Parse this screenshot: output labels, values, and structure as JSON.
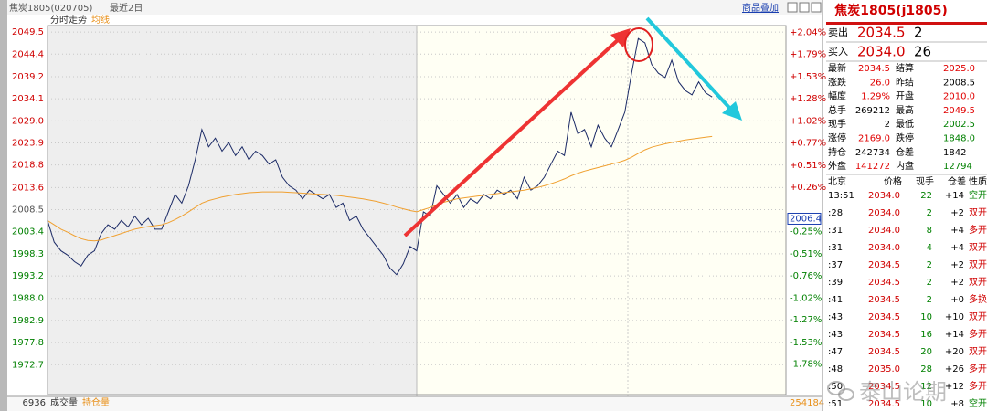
{
  "header": {
    "symbol": "焦炭1805(020705)",
    "range": "最近2日",
    "overlay_link": "商品叠加",
    "panel_tab": "分时走势",
    "avg_tab": "均线"
  },
  "chart_data": {
    "type": "line",
    "ylim": [
      1965.8,
      2051.0
    ],
    "yticks": [
      2049.5,
      2044.4,
      2039.2,
      2034.1,
      {
        "value": 2029,
        "label": "2029.0"
      },
      2023.9,
      2018.8,
      2013.6,
      2008.5,
      2003.4,
      1998.3,
      1993.2,
      {
        "value": 1988,
        "label": "1988.0"
      },
      1982.9,
      1977.8,
      1972.7
    ],
    "y2lim": [
      -2.13,
      2.12
    ],
    "y2ticks": [
      {
        "value": 2.04,
        "label": "+2.04%"
      },
      {
        "value": 1.79,
        "label": "+1.79%"
      },
      {
        "value": 1.53,
        "label": "+1.53%"
      },
      {
        "value": 1.28,
        "label": "+1.28%"
      },
      {
        "value": 1.02,
        "label": "+1.02%"
      },
      {
        "value": 0.77,
        "label": "+0.77%"
      },
      {
        "value": 0.51,
        "label": "+0.51%"
      },
      {
        "value": 0.26,
        "label": "+0.26%"
      },
      {
        "value": -0.25,
        "label": "-0.25%"
      },
      {
        "value": -0.51,
        "label": "-0.51%"
      },
      {
        "value": -0.76,
        "label": "-0.76%"
      },
      {
        "value": -1.02,
        "label": "-1.02%"
      },
      {
        "value": -1.27,
        "label": "-1.27%"
      },
      {
        "value": -1.53,
        "label": "-1.53%"
      },
      {
        "value": -1.78,
        "label": "-1.78%"
      }
    ],
    "grid": true,
    "right_marker": 2006.4,
    "series": [
      {
        "color": "#1b2a66",
        "values": [
          2006,
          2001,
          1999,
          1998,
          1996.5,
          1995.5,
          1998,
          1999,
          2003,
          2005,
          2004,
          2006,
          2004.5,
          2007,
          2005,
          2006.5,
          2004,
          2004,
          2008,
          2012,
          2010,
          2014,
          2020,
          2027,
          2023,
          2025,
          2022,
          2024,
          2021,
          2023,
          2020,
          2022,
          2021,
          2019,
          2020,
          2016,
          2014,
          2013,
          2011,
          2013,
          2012,
          2011,
          2012,
          2009,
          2010,
          2006,
          2007,
          2004,
          2002,
          2000,
          1998,
          1995,
          1993.5,
          1996,
          2000,
          1999,
          2008,
          2007,
          2014,
          2012,
          2010,
          2012,
          2009,
          2011,
          2010,
          2012,
          2011,
          2013,
          2012,
          2013,
          2011,
          2016,
          2013,
          2014,
          2016,
          2019,
          2022,
          2021,
          2031,
          2026,
          2027,
          2023,
          2028,
          2025,
          2023,
          2027,
          2031,
          2040,
          2048,
          2047,
          2042,
          2040,
          2039,
          2043,
          2038,
          2036,
          2035,
          2038,
          2035.5,
          2034.5,
          null,
          null,
          null,
          null,
          null,
          null,
          null,
          null,
          null,
          null
        ]
      },
      {
        "name": "均线",
        "color": "#f0a030",
        "values": [
          2006,
          2005,
          2004,
          2003.3,
          2002.5,
          2001.8,
          2001.4,
          2001.3,
          2001.5,
          2002,
          2002.5,
          2003,
          2003.5,
          2004,
          2004.3,
          2004.6,
          2004.8,
          2005,
          2005.5,
          2006.2,
          2007,
          2008,
          2009,
          2010,
          2010.6,
          2011,
          2011.4,
          2011.7,
          2012,
          2012.2,
          2012.4,
          2012.5,
          2012.6,
          2012.6,
          2012.6,
          2012.6,
          2012.5,
          2012.4,
          2012.3,
          2012.2,
          2012.1,
          2012,
          2011.9,
          2011.8,
          2011.6,
          2011.4,
          2011.2,
          2011,
          2010.7,
          2010.4,
          2010,
          2009.6,
          2009.1,
          2008.7,
          2008.3,
          2008,
          2008.5,
          2009,
          2009.7,
          2010.2,
          2010.6,
          2011,
          2011.2,
          2011.4,
          2011.6,
          2011.8,
          2012,
          2012.2,
          2012.4,
          2012.6,
          2012.8,
          2013,
          2013.3,
          2013.6,
          2014,
          2014.5,
          2015,
          2015.6,
          2016.3,
          2016.9,
          2017.4,
          2017.8,
          2018.2,
          2018.6,
          2019,
          2019.4,
          2019.9,
          2020.6,
          2021.5,
          2022.3,
          2022.9,
          2023.3,
          2023.7,
          2024,
          2024.3,
          2024.6,
          2024.8,
          2025,
          2025.2,
          2025.4,
          null,
          null,
          null,
          null,
          null,
          null,
          null,
          null,
          null,
          null
        ]
      }
    ]
  },
  "volume_panel": {
    "title": "成交量",
    "oi_title": "持仓量",
    "volume_max": "6936",
    "oi_value": "254184"
  },
  "quote": {
    "title": "焦炭1805(j1805)",
    "sell": {
      "label": "卖出",
      "price": "2034.5",
      "qty": "2"
    },
    "buy": {
      "label": "买入",
      "price": "2034.0",
      "qty": "26"
    },
    "stats": [
      {
        "label": "最新",
        "value": "2034.5",
        "color": "#e00000"
      },
      {
        "label": "结算",
        "value": "2025.0",
        "color": "#e00000"
      },
      {
        "label": "涨跌",
        "value": "26.0",
        "color": "#e00000"
      },
      {
        "label": "昨结",
        "value": "2008.5",
        "color": "#000000"
      },
      {
        "label": "幅度",
        "value": "1.29%",
        "color": "#e00000"
      },
      {
        "label": "开盘",
        "value": "2010.0",
        "color": "#e00000"
      },
      {
        "label": "总手",
        "value": "269212",
        "color": "#000000"
      },
      {
        "label": "最高",
        "value": "2049.5",
        "color": "#e00000"
      },
      {
        "label": "现手",
        "value": "2",
        "color": "#000000"
      },
      {
        "label": "最低",
        "value": "2002.5",
        "color": "#008000"
      },
      {
        "label": "涨停",
        "value": "2169.0",
        "color": "#e00000"
      },
      {
        "label": "跌停",
        "value": "1848.0",
        "color": "#008000"
      },
      {
        "label": "持仓",
        "value": "242734",
        "color": "#000000"
      },
      {
        "label": "仓差",
        "value": "1842",
        "color": "#000000"
      },
      {
        "label": "外盘",
        "value": "141272",
        "color": "#e00000"
      },
      {
        "label": "内盘",
        "value": "12794",
        "color": "#008000"
      }
    ]
  },
  "trades": {
    "header": [
      "北京",
      "价格",
      "现手",
      "仓差",
      "性质"
    ],
    "rows": [
      [
        "13:51",
        "2034.0",
        "22",
        "+14",
        "空开"
      ],
      [
        ":28",
        "2034.0",
        "2",
        "+2",
        "双开"
      ],
      [
        ":31",
        "2034.0",
        "8",
        "+4",
        "多开"
      ],
      [
        ":31",
        "2034.0",
        "4",
        "+4",
        "双开"
      ],
      [
        ":37",
        "2034.5",
        "2",
        "+2",
        "双开"
      ],
      [
        ":39",
        "2034.5",
        "2",
        "+2",
        "双开"
      ],
      [
        ":41",
        "2034.5",
        "2",
        "+0",
        "多换"
      ],
      [
        ":43",
        "2034.5",
        "10",
        "+10",
        "双开"
      ],
      [
        ":43",
        "2034.5",
        "16",
        "+14",
        "多开"
      ],
      [
        ":47",
        "2034.5",
        "20",
        "+20",
        "双开"
      ],
      [
        ":48",
        "2035.0",
        "28",
        "+26",
        "多开"
      ],
      [
        ":50",
        "2034.5",
        "12",
        "+12",
        "多开"
      ],
      [
        ":51",
        "2034.5",
        "10",
        "+8",
        "空开"
      ]
    ]
  },
  "watermark": "泰山论期"
}
